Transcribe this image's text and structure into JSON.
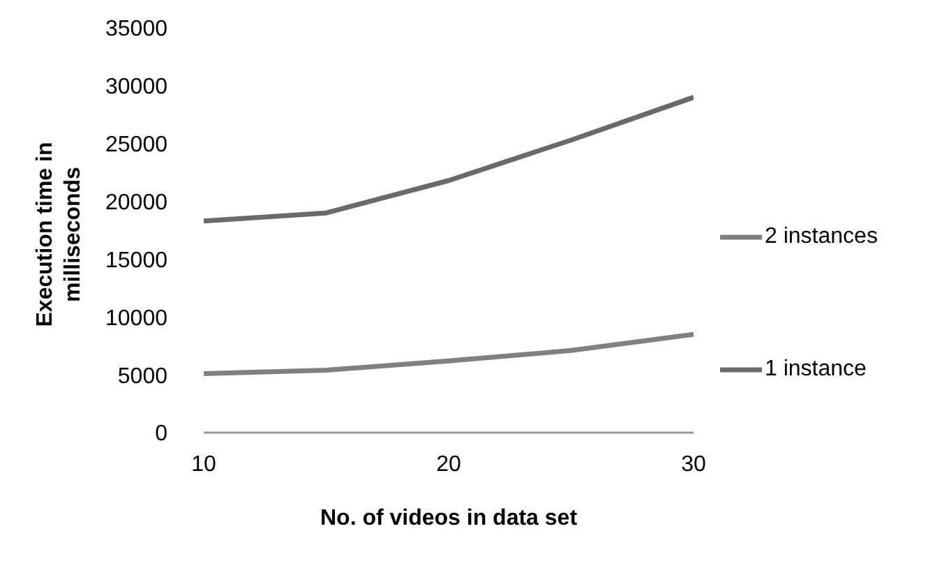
{
  "chart_data": {
    "type": "line",
    "xlabel": "No. of videos in data set",
    "ylabel": "Execution time in milliseconds",
    "x": [
      10,
      15,
      20,
      25,
      30
    ],
    "xlim": [
      10,
      30
    ],
    "xticks": [
      10,
      20,
      30
    ],
    "ylim": [
      0,
      35000
    ],
    "yticks": [
      0,
      5000,
      10000,
      15000,
      20000,
      25000,
      30000,
      35000
    ],
    "grid": false,
    "legend": "right",
    "marker": "none",
    "series": [
      {
        "name": "2 instances",
        "color": "#808080",
        "values": [
          5100,
          5400,
          6200,
          7100,
          8500
        ]
      },
      {
        "name": "1 instance",
        "color": "#6a6a6a",
        "values": [
          18300,
          19000,
          21800,
          25300,
          29000
        ]
      }
    ]
  }
}
